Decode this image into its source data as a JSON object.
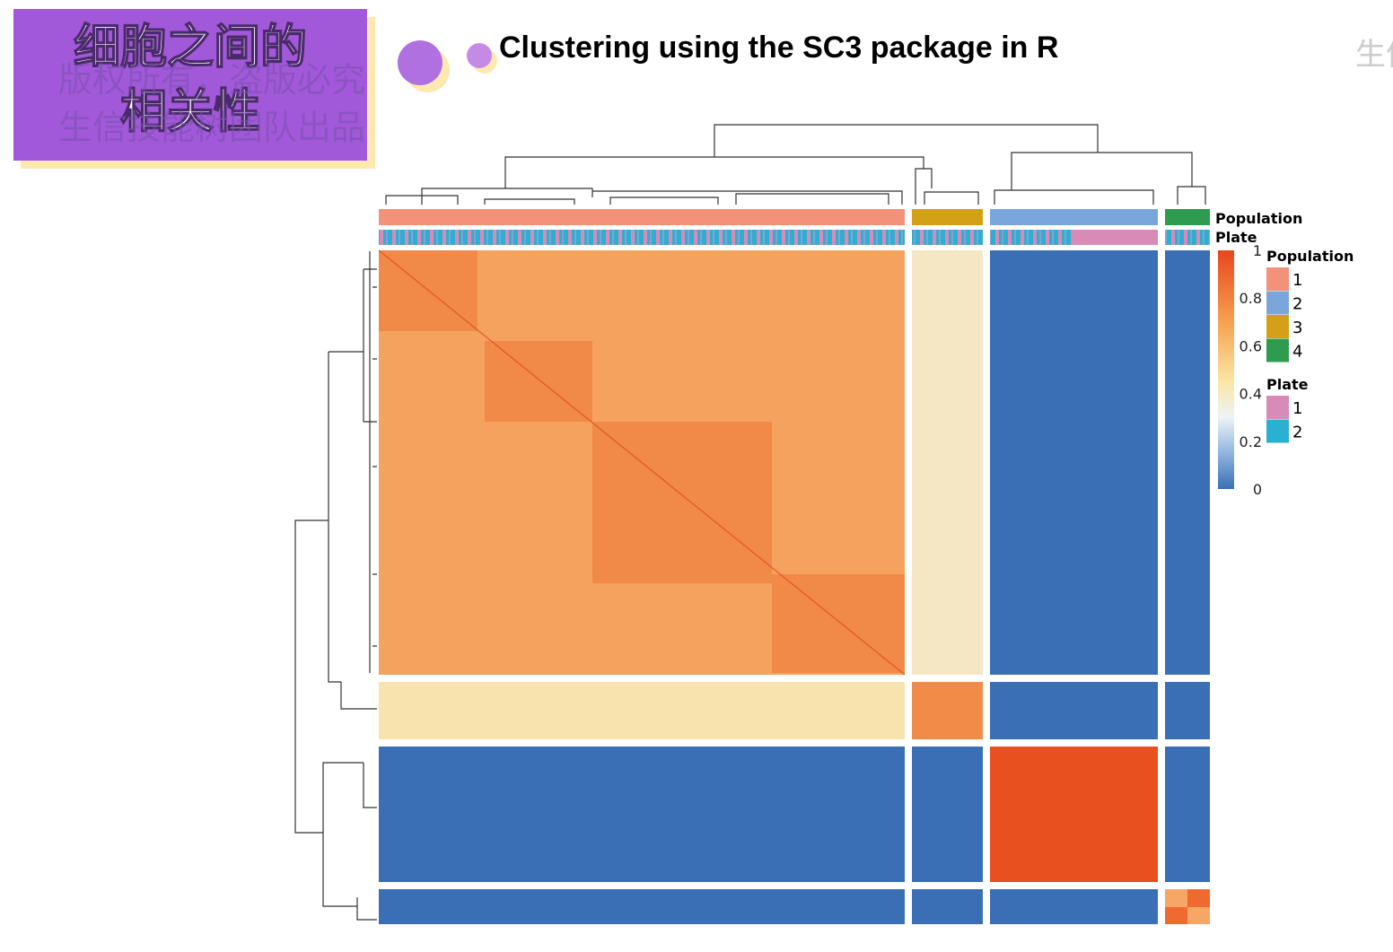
{
  "header": {
    "badge_title": "细胞之间的相关性",
    "watermark_lines": [
      "版权所有，盗版必究",
      "生信技能树团队出品"
    ],
    "slide_title": "Clustering using the SC3 package in R",
    "corner_mark": "生信"
  },
  "heatmap": {
    "annotation_rows": [
      "Population",
      "Plate"
    ],
    "colorbar": {
      "ticks": [
        1,
        0.8,
        0.6,
        0.4,
        0.2,
        0
      ],
      "range": [
        0,
        1
      ]
    },
    "legends": [
      {
        "title": "Population",
        "items": [
          {
            "label": "1",
            "color": "#f4917a"
          },
          {
            "label": "2",
            "color": "#7aa6dc"
          },
          {
            "label": "3",
            "color": "#d4a017"
          },
          {
            "label": "4",
            "color": "#2e9b4e"
          }
        ]
      },
      {
        "title": "Plate",
        "items": [
          {
            "label": "1",
            "color": "#d98bb7"
          },
          {
            "label": "2",
            "color": "#2bb0d1"
          }
        ]
      }
    ]
  }
}
